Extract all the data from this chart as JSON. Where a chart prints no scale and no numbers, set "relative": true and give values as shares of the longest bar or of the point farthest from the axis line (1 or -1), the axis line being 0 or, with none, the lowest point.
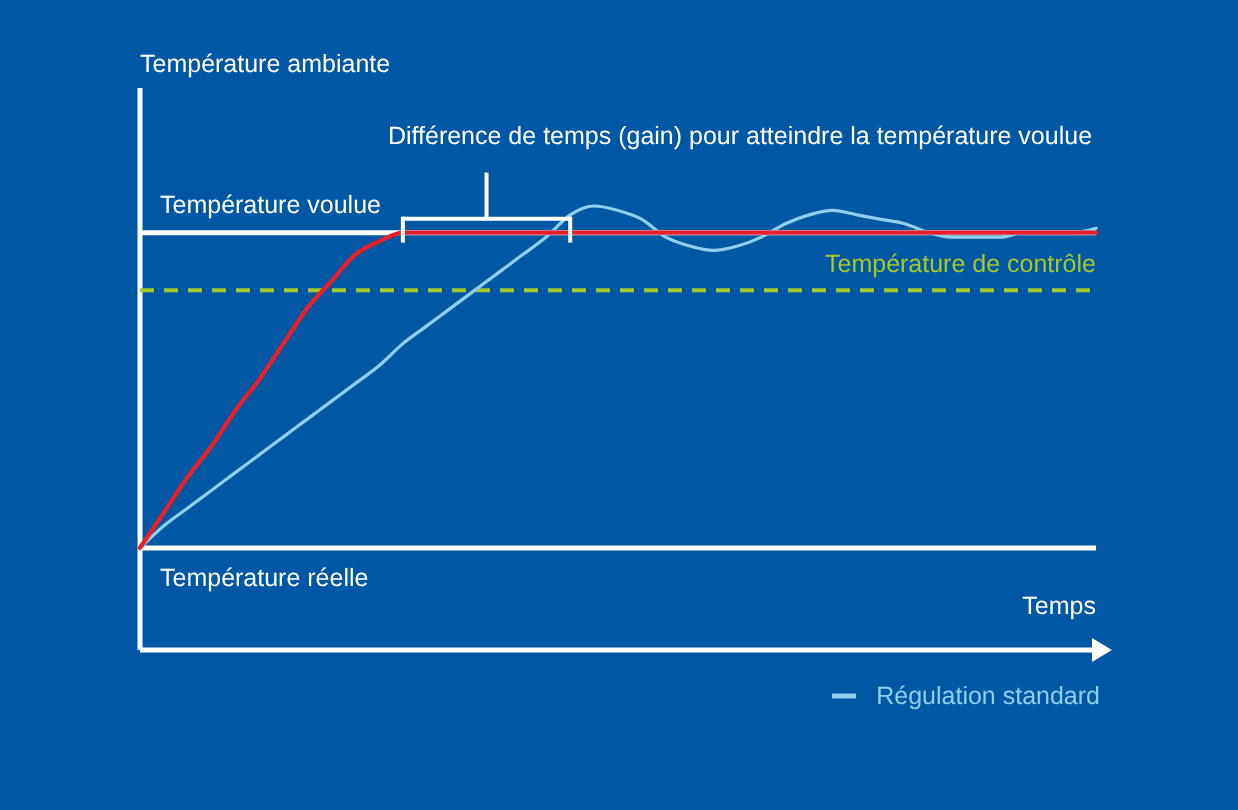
{
  "chart_data": {
    "type": "line",
    "relative": true,
    "xlabel": "Temps",
    "annotations": [
      "Température ambiante",
      "Différence de temps (gain) pour atteindre la température voulue"
    ],
    "categories": [
      null,
      null,
      null,
      null,
      null,
      null,
      null,
      null,
      null,
      null,
      null,
      null,
      null,
      null,
      null,
      null,
      null,
      null,
      null,
      null,
      null,
      null,
      null,
      null,
      null,
      null,
      null,
      null,
      null,
      null,
      null,
      null,
      null,
      null,
      null,
      null,
      null,
      null,
      null,
      null,
      null
    ],
    "series": [
      {
        "name": "Régulation standard",
        "color": "#8fd0ef",
        "values": [
          0.23,
          0.28,
          0.32,
          0.36,
          0.4,
          0.44,
          0.48,
          0.52,
          0.56,
          0.6,
          0.64,
          0.69,
          0.73,
          0.77,
          0.81,
          0.85,
          0.89,
          0.93,
          0.98,
          1.0,
          0.99,
          0.97,
          0.93,
          0.91,
          0.9,
          0.91,
          0.93,
          0.96,
          0.98,
          0.99,
          0.98,
          0.97,
          0.96,
          0.94,
          0.93,
          0.93,
          0.93,
          0.94,
          0.94,
          0.94,
          0.95
        ]
      },
      {
        "color": "#e8202a",
        "values": [
          0.23,
          0.31,
          0.39,
          0.46,
          0.54,
          0.61,
          0.69,
          0.77,
          0.83,
          0.89,
          0.92,
          0.94,
          0.94,
          0.94,
          0.94,
          0.94,
          0.94,
          0.94,
          0.94,
          0.94,
          0.94,
          0.94,
          0.94,
          0.94,
          0.94,
          0.94,
          0.94,
          0.94,
          0.94,
          0.94,
          0.94,
          0.94,
          0.94,
          0.94,
          0.94,
          0.94,
          0.94,
          0.94,
          0.94,
          0.94,
          0.94
        ]
      }
    ],
    "ref_lines": [
      {
        "axis": "y",
        "value": 0.94,
        "label": "Température voulue",
        "color": "#ffffff",
        "line_style": "solid"
      },
      {
        "axis": "y",
        "value": 0.81,
        "label": "Température de contrôle",
        "color": "#a5c92b",
        "line_style": "dashed"
      },
      {
        "axis": "y",
        "value": 0.23,
        "label": "Température réelle",
        "color": "#ffffff",
        "line_style": "solid"
      }
    ],
    "legend": "bottom right",
    "marker": "none",
    "line_style": "solid"
  }
}
